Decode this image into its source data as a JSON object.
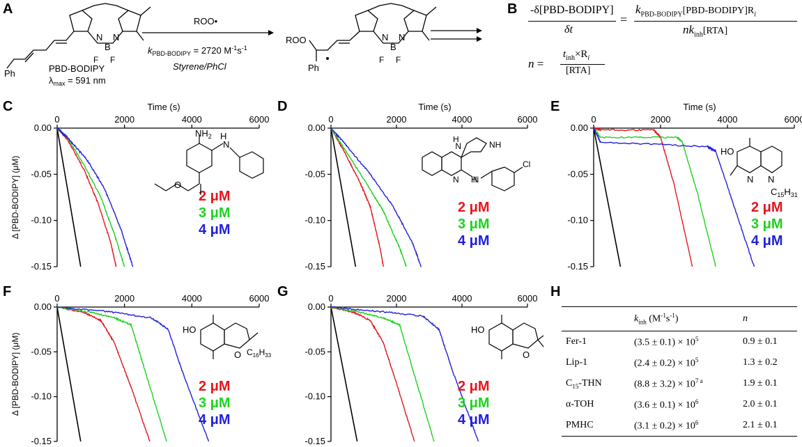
{
  "panels": {
    "A": "A",
    "B": "B",
    "C": "C",
    "D": "D",
    "E": "E",
    "F": "F",
    "G": "G",
    "H": "H"
  },
  "scheme": {
    "reagent": "ROO•",
    "rate": "k",
    "rate_sub": "PBD-BODIPY",
    "rate_value": " = 2720 M",
    "rate_exp1": "-1",
    "rate_unit": "s",
    "rate_exp2": "-1",
    "solvent": "Styrene/PhCl",
    "compound_name": "PBD-BODIPY",
    "lambda_label": "λ",
    "lambda_sub": "max",
    "lambda_value": " = 591 nm",
    "ph": "Ph",
    "ph2": "Ph",
    "roo": "ROO",
    "b": "B",
    "f1": "F",
    "f2": "F",
    "f3": "F",
    "f4": "F",
    "n1": "N",
    "n2": "N",
    "n3": "N",
    "n4": "N"
  },
  "equations": {
    "eq1_lhs_num": "-δ[PBD-BODIPY]",
    "eq1_lhs_den": "δt",
    "eq1_eq": "=",
    "eq1_rhs_num_k": "k",
    "eq1_rhs_num_ksub": "PBD-BODIPY",
    "eq1_rhs_num_rest": "[PBD-BODIPY]R",
    "eq1_rhs_num_rsub": "i",
    "eq1_rhs_den_n": "nk",
    "eq1_rhs_den_sub": "inh",
    "eq1_rhs_den_rest": "[RTA]",
    "eq2_lhs": "n =",
    "eq2_num_t": "t",
    "eq2_num_sub": "inh",
    "eq2_num_rest": "×R",
    "eq2_num_rsub": "i",
    "eq2_den": "[RTA]"
  },
  "concentrations": [
    "2 μM",
    "3 μM",
    "4 μM"
  ],
  "colors": {
    "c2": "#e8141c",
    "c3": "#1ed21e",
    "c4": "#1f1fdc",
    "control": "#000000"
  },
  "molecules": {
    "C": {
      "nh2": "NH",
      "nh2_sub": "2",
      "nh": "N",
      "h": "H",
      "o": "O"
    },
    "D": {
      "nh_top": "N",
      "h_top": "H",
      "nh_pip": "NH",
      "n_bot": "N",
      "nh_bot": "N",
      "h_bot": "H",
      "cl": "Cl"
    },
    "E": {
      "ho": "HO",
      "n1": "N",
      "n2": "N",
      "c15": "C",
      "c15_sub": "15",
      "c15_h": "H",
      "c15_hsub": "31"
    },
    "F": {
      "ho": "HO",
      "o": "O",
      "c16": "C",
      "c16_sub": "16",
      "c16_h": "H",
      "c16_hsub": "33"
    },
    "G": {
      "ho": "HO",
      "o": "O"
    }
  },
  "table_h": {
    "col1_k": "k",
    "col1_sub": "inh",
    "col1_unit": " (M",
    "col1_e1": "-1",
    "col1_s": "s",
    "col1_e2": "-1",
    "col1_close": ")",
    "col2": "n",
    "rows": [
      {
        "name": "Fer-1",
        "k": "(3.5 ± 0.1) × 10",
        "k_exp": "5",
        "n": "0.9 ± 0.1"
      },
      {
        "name": "Lip-1",
        "k": "(2.4 ± 0.2) × 10",
        "k_exp": "5",
        "n": "1.3 ± 0.2"
      },
      {
        "name": "C",
        "name_sub": "15",
        "name_rest": "-THN",
        "k": "(8.8 ± 3.2) × 10",
        "k_exp": "7 a",
        "n": "1.9 ± 0.1"
      },
      {
        "name": "α-TOH",
        "k": "(3.6 ± 0.1) × 10",
        "k_exp": "6",
        "n": "2.0 ± 0.1"
      },
      {
        "name": "PMHC",
        "k": "(3.1 ± 0.2) × 10",
        "k_exp": "6",
        "n": "2.1 ± 0.1"
      }
    ]
  },
  "chart_data": [
    {
      "panel": "C",
      "type": "line",
      "xlabel": "Time (s)",
      "ylabel": "Δ [PBD-BODIPY] (μM)",
      "xlim": [
        0,
        6000
      ],
      "ylim": [
        -0.15,
        0
      ],
      "xticks": [
        "0",
        "2000",
        "4000",
        "6000"
      ],
      "yticks": [
        "0.00",
        "-0.05",
        "-0.10",
        "-0.15"
      ],
      "series": [
        {
          "name": "",
          "x": [
            0,
            700
          ],
          "y": [
            0,
            -0.15
          ]
        },
        {
          "name": "2 μM",
          "x": [
            0,
            300,
            800,
            1200,
            1600,
            1750
          ],
          "y": [
            0,
            -0.012,
            -0.045,
            -0.08,
            -0.125,
            -0.15
          ]
        },
        {
          "name": "3 μM",
          "x": [
            0,
            300,
            800,
            1300,
            1700,
            2000
          ],
          "y": [
            0,
            -0.01,
            -0.04,
            -0.075,
            -0.115,
            -0.15
          ]
        },
        {
          "name": "4 μM",
          "x": [
            0,
            300,
            900,
            1400,
            1900,
            2250
          ],
          "y": [
            0,
            -0.01,
            -0.035,
            -0.065,
            -0.11,
            -0.15
          ]
        }
      ]
    },
    {
      "panel": "D",
      "type": "line",
      "xlabel": "Time (s)",
      "ylabel": "",
      "xlim": [
        0,
        6000
      ],
      "ylim": [
        -0.15,
        0
      ],
      "xticks": [
        "0",
        "2000",
        "4000",
        "6000"
      ],
      "yticks": [
        "0.00",
        "-0.05",
        "-0.10",
        "-0.15"
      ],
      "series": [
        {
          "name": "",
          "x": [
            0,
            750
          ],
          "y": [
            0,
            -0.15
          ]
        },
        {
          "name": "2 μM",
          "x": [
            0,
            400,
            900,
            1200,
            1500,
            1600
          ],
          "y": [
            0,
            -0.025,
            -0.06,
            -0.085,
            -0.13,
            -0.15
          ]
        },
        {
          "name": "3 μM",
          "x": [
            0,
            400,
            1000,
            1600,
            2100,
            2300
          ],
          "y": [
            0,
            -0.022,
            -0.055,
            -0.09,
            -0.13,
            -0.15
          ]
        },
        {
          "name": "4 μM",
          "x": [
            0,
            500,
            1200,
            1900,
            2500,
            2750
          ],
          "y": [
            0,
            -0.02,
            -0.05,
            -0.085,
            -0.125,
            -0.15
          ]
        }
      ]
    },
    {
      "panel": "E",
      "type": "line",
      "xlabel": "Time (s)",
      "ylabel": "",
      "xlim": [
        0,
        6000
      ],
      "ylim": [
        -0.15,
        0
      ],
      "xticks": [
        "0",
        "2000",
        "4000",
        "6000"
      ],
      "yticks": [
        "0.00",
        "-0.05",
        "-0.10",
        "-0.15"
      ],
      "series": [
        {
          "name": "",
          "x": [
            0,
            800
          ],
          "y": [
            0,
            -0.15
          ]
        },
        {
          "name": "2 μM",
          "x": [
            0,
            200,
            1800,
            2000,
            2400,
            2950
          ],
          "y": [
            0,
            -0.002,
            -0.002,
            -0.01,
            -0.06,
            -0.15
          ]
        },
        {
          "name": "3 μM",
          "x": [
            0,
            200,
            2500,
            2650,
            3100,
            3650
          ],
          "y": [
            0,
            -0.01,
            -0.01,
            -0.015,
            -0.07,
            -0.15
          ]
        },
        {
          "name": "4 μM",
          "x": [
            0,
            200,
            3400,
            3650,
            4200,
            4800
          ],
          "y": [
            0,
            -0.015,
            -0.02,
            -0.025,
            -0.085,
            -0.15
          ]
        }
      ]
    },
    {
      "panel": "F",
      "type": "line",
      "xlabel": "",
      "ylabel": "Δ [PBD-BODIPY] (μM)",
      "xlim": [
        0,
        6000
      ],
      "ylim": [
        -0.15,
        0
      ],
      "xticks": [
        "0",
        "2000",
        "4000",
        "6000"
      ],
      "yticks": [
        "0.00",
        "-0.05",
        "-0.10",
        "-0.15"
      ],
      "series": [
        {
          "name": "",
          "x": [
            0,
            700
          ],
          "y": [
            0,
            -0.15
          ]
        },
        {
          "name": "2 μM",
          "x": [
            0,
            800,
            1300,
            1700,
            2200,
            2750
          ],
          "y": [
            0,
            -0.006,
            -0.015,
            -0.04,
            -0.09,
            -0.15
          ]
        },
        {
          "name": "3 μM",
          "x": [
            0,
            1000,
            1700,
            2200,
            2600,
            3250
          ],
          "y": [
            0,
            -0.006,
            -0.012,
            -0.02,
            -0.07,
            -0.15
          ]
        },
        {
          "name": "4 μM",
          "x": [
            0,
            1500,
            2800,
            3300,
            3700,
            4500
          ],
          "y": [
            0,
            -0.005,
            -0.012,
            -0.025,
            -0.07,
            -0.15
          ]
        }
      ]
    },
    {
      "panel": "G",
      "type": "line",
      "xlabel": "",
      "ylabel": "",
      "xlim": [
        0,
        6000
      ],
      "ylim": [
        -0.15,
        0
      ],
      "xticks": [
        "0",
        "2000",
        "4000",
        "6000"
      ],
      "yticks": [
        "0.00",
        "-0.05",
        "-0.10",
        "-0.15"
      ],
      "series": [
        {
          "name": "",
          "x": [
            0,
            800
          ],
          "y": [
            0,
            -0.15
          ]
        },
        {
          "name": "2 μM",
          "x": [
            0,
            700,
            1200,
            1600,
            2000,
            2550
          ],
          "y": [
            0,
            -0.006,
            -0.015,
            -0.04,
            -0.085,
            -0.15
          ]
        },
        {
          "name": "3 μM",
          "x": [
            0,
            900,
            1600,
            2100,
            2500,
            3150
          ],
          "y": [
            0,
            -0.006,
            -0.012,
            -0.02,
            -0.07,
            -0.15
          ]
        },
        {
          "name": "4 μM",
          "x": [
            0,
            1500,
            2800,
            3300,
            3700,
            4500
          ],
          "y": [
            0,
            -0.005,
            -0.01,
            -0.025,
            -0.07,
            -0.15
          ]
        }
      ]
    }
  ]
}
